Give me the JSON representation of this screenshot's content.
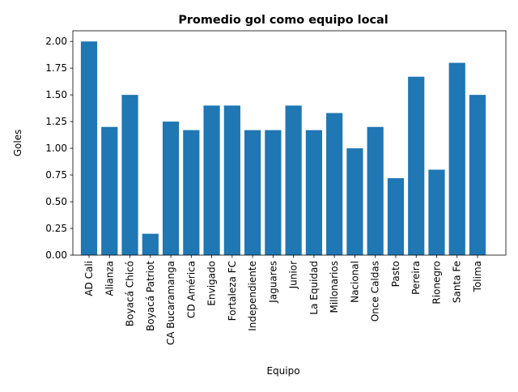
{
  "chart_data": {
    "type": "bar",
    "title": "Promedio gol como equipo local",
    "xlabel": "Equipo",
    "ylabel": "Goles",
    "ylim": [
      0,
      2.1
    ],
    "yticks": [
      0.0,
      0.25,
      0.5,
      0.75,
      1.0,
      1.25,
      1.5,
      1.75,
      2.0
    ],
    "ytick_labels": [
      "0.00",
      "0.25",
      "0.50",
      "0.75",
      "1.00",
      "1.25",
      "1.50",
      "1.75",
      "2.00"
    ],
    "grid": false,
    "bar_color": "#1f77b4",
    "categories": [
      "AD Cali",
      "Alianza",
      "Boyacá Chicó",
      "Boyacá Patriot",
      "CA Bucaramanga",
      "CD América",
      "Envigado",
      "Fortaleza FC",
      "Independiente",
      "Jaguares",
      "Junior",
      "La Equidad",
      "Millonarios",
      "Nacional",
      "Once Caldas",
      "Pasto",
      "Pereira",
      "Rionegro",
      "Santa Fe",
      "Tolima"
    ],
    "values": [
      2.0,
      1.2,
      1.5,
      0.2,
      1.25,
      1.17,
      1.4,
      1.4,
      1.17,
      1.17,
      1.4,
      1.17,
      1.33,
      1.0,
      1.2,
      0.72,
      1.67,
      0.8,
      1.8,
      1.5
    ]
  }
}
